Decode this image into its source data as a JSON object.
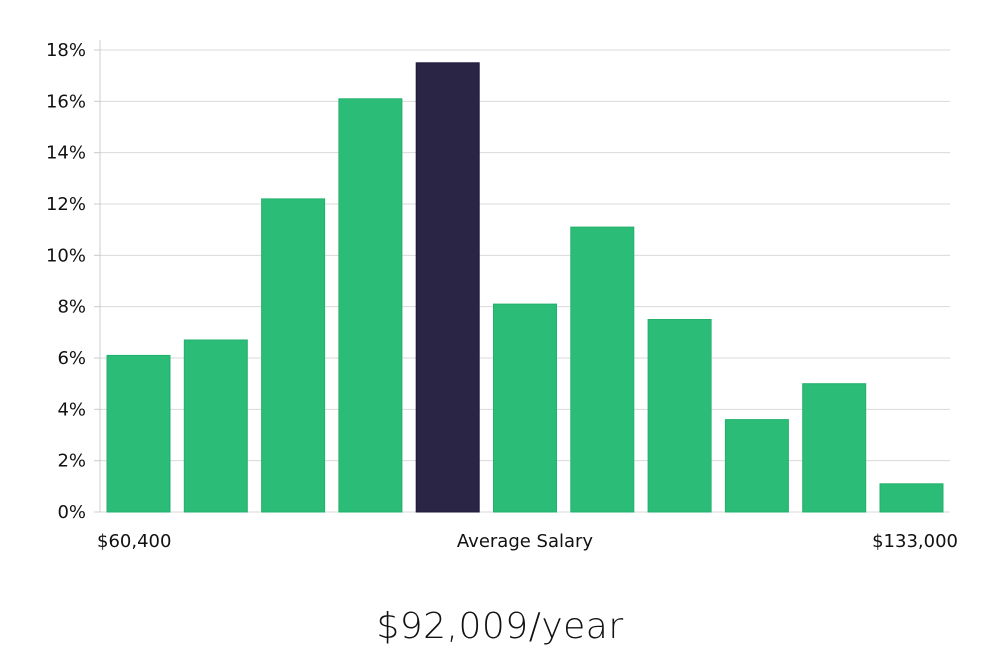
{
  "chart_data": {
    "type": "bar",
    "y_tick_labels": [
      "0%",
      "2%",
      "4%",
      "6%",
      "8%",
      "10%",
      "12%",
      "14%",
      "16%",
      "18%"
    ],
    "x_labels": {
      "left": "$60,400",
      "center": "Average Salary",
      "right": "$133,000"
    },
    "values": [
      6.1,
      6.7,
      12.2,
      16.1,
      17.5,
      8.1,
      11.1,
      7.5,
      3.6,
      5.0,
      1.1
    ],
    "highlight_index": 4,
    "ylim": [
      0,
      18
    ],
    "y_unit": "%",
    "grid": true,
    "colors": {
      "bar": "#2bbd77",
      "highlight": "#2a2545",
      "grid": "#d9d9d9",
      "axis": "#cccccc"
    }
  },
  "headline": "$92,009/year"
}
